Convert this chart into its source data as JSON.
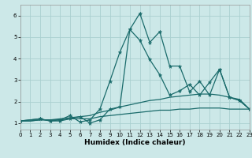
{
  "xlabel": "Humidex (Indice chaleur)",
  "bg_color": "#cce8e8",
  "grid_color": "#aad0d0",
  "line_color": "#1a6b6b",
  "xlim": [
    0,
    23
  ],
  "ylim": [
    0.7,
    6.5
  ],
  "yticks": [
    1,
    2,
    3,
    4,
    5,
    6
  ],
  "xticks": [
    0,
    1,
    2,
    3,
    4,
    5,
    6,
    7,
    8,
    9,
    10,
    11,
    12,
    13,
    14,
    15,
    16,
    17,
    18,
    19,
    20,
    21,
    22,
    23
  ],
  "lines": [
    {
      "x": [
        0,
        1,
        2,
        3,
        4,
        5,
        6,
        7,
        8,
        9,
        10,
        11,
        12,
        13,
        14,
        15,
        16,
        17,
        18,
        19,
        20,
        21,
        22,
        23
      ],
      "y": [
        1.1,
        1.1,
        1.15,
        1.15,
        1.15,
        1.2,
        1.2,
        1.2,
        1.3,
        1.35,
        1.4,
        1.45,
        1.5,
        1.55,
        1.6,
        1.6,
        1.65,
        1.65,
        1.7,
        1.7,
        1.7,
        1.65,
        1.65,
        1.65
      ],
      "markers": false
    },
    {
      "x": [
        0,
        1,
        2,
        3,
        4,
        5,
        6,
        7,
        8,
        9,
        10,
        11,
        12,
        13,
        14,
        15,
        16,
        17,
        18,
        19,
        20,
        21,
        22,
        23
      ],
      "y": [
        1.1,
        1.1,
        1.15,
        1.15,
        1.2,
        1.25,
        1.3,
        1.35,
        1.5,
        1.6,
        1.75,
        1.85,
        1.95,
        2.05,
        2.1,
        2.2,
        2.25,
        2.3,
        2.35,
        2.35,
        2.3,
        2.2,
        2.1,
        1.65
      ],
      "markers": false
    },
    {
      "x": [
        0,
        2,
        3,
        4,
        5,
        6,
        7,
        8,
        9,
        10,
        11,
        12,
        13,
        14,
        15,
        16,
        17,
        18,
        19,
        20,
        21,
        22,
        23
      ],
      "y": [
        1.1,
        1.2,
        1.1,
        1.15,
        1.35,
        1.05,
        1.15,
        1.65,
        2.95,
        4.3,
        5.35,
        6.1,
        4.75,
        5.25,
        3.65,
        3.65,
        2.45,
        2.95,
        2.3,
        3.5,
        2.2,
        2.05,
        1.65
      ],
      "markers": true
    },
    {
      "x": [
        0,
        2,
        3,
        4,
        5,
        6,
        7,
        8,
        9,
        10,
        11,
        12,
        13,
        14,
        15,
        16,
        17,
        18,
        19,
        20,
        21,
        22,
        23
      ],
      "y": [
        1.1,
        1.2,
        1.1,
        1.1,
        1.2,
        1.3,
        1.0,
        1.15,
        1.65,
        1.75,
        5.35,
        4.85,
        3.95,
        3.25,
        2.3,
        2.5,
        2.8,
        2.3,
        2.9,
        3.5,
        2.2,
        2.05,
        1.65
      ],
      "markers": true
    }
  ]
}
